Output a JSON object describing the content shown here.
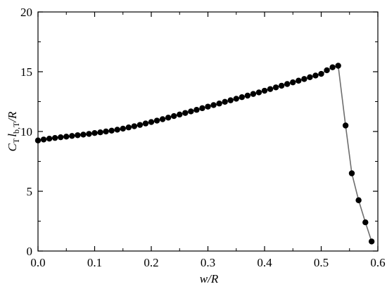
{
  "chart_data": {
    "type": "line",
    "title": "",
    "xlabel": "w/R",
    "ylabel_parts": {
      "C": "C",
      "T1": "T",
      "l": "l",
      "bT": "b,T",
      "R": "/R"
    },
    "xlim": [
      0.0,
      0.6
    ],
    "ylim": [
      0,
      20
    ],
    "x_ticks": [
      "0.0",
      "0.1",
      "0.2",
      "0.3",
      "0.4",
      "0.5",
      "0.6"
    ],
    "y_ticks": [
      "0",
      "5",
      "10",
      "15",
      "20"
    ],
    "grid": false,
    "legend": "none",
    "marker": "circle-filled",
    "line_color": "#6e6e6e",
    "marker_color": "#000000",
    "series": [
      {
        "x": [
          0.0,
          0.01,
          0.02,
          0.03,
          0.04,
          0.05,
          0.06,
          0.07,
          0.08,
          0.09,
          0.1,
          0.11,
          0.12,
          0.13,
          0.14,
          0.15,
          0.16,
          0.17,
          0.18,
          0.19,
          0.2,
          0.21,
          0.22,
          0.23,
          0.24,
          0.25,
          0.26,
          0.27,
          0.28,
          0.29,
          0.3,
          0.31,
          0.32,
          0.33,
          0.34,
          0.35,
          0.36,
          0.37,
          0.38,
          0.39,
          0.4,
          0.41,
          0.42,
          0.43,
          0.44,
          0.45,
          0.46,
          0.47,
          0.48,
          0.49,
          0.5,
          0.51,
          0.52,
          0.53,
          0.543,
          0.554,
          0.566,
          0.578,
          0.589
        ],
        "y": [
          9.25,
          9.33,
          9.4,
          9.46,
          9.52,
          9.57,
          9.63,
          9.69,
          9.74,
          9.8,
          9.87,
          9.93,
          10.0,
          10.07,
          10.15,
          10.24,
          10.34,
          10.44,
          10.55,
          10.67,
          10.79,
          10.91,
          11.03,
          11.16,
          11.29,
          11.42,
          11.55,
          11.68,
          11.81,
          11.95,
          12.08,
          12.21,
          12.34,
          12.48,
          12.61,
          12.74,
          12.87,
          13.0,
          13.14,
          13.27,
          13.41,
          13.55,
          13.69,
          13.83,
          13.97,
          14.11,
          14.25,
          14.39,
          14.54,
          14.68,
          14.82,
          15.12,
          15.37,
          15.5,
          10.5,
          6.5,
          4.25,
          2.4,
          0.8
        ]
      }
    ]
  }
}
